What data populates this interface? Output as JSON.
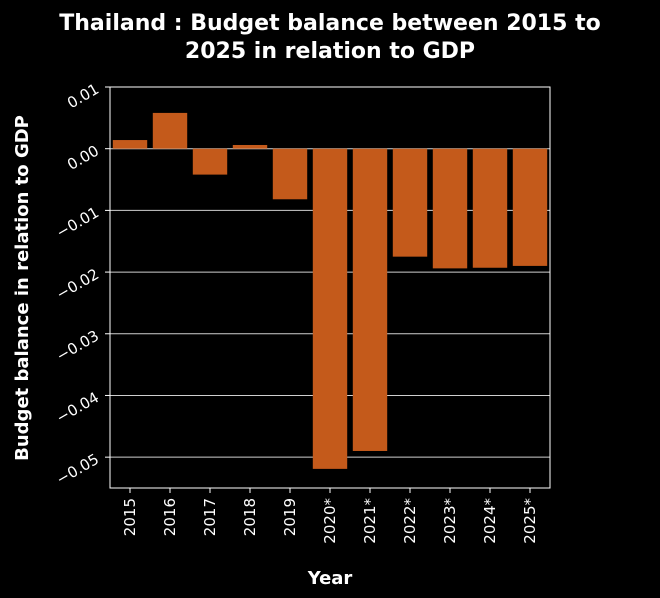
{
  "chart_data": {
    "type": "bar",
    "title_lines": [
      "Thailand : Budget balance between 2015 to",
      "2025 in relation to GDP"
    ],
    "xlabel": "Year",
    "ylabel": "Budget balance in relation to GDP",
    "categories": [
      "2015",
      "2016",
      "2017",
      "2018",
      "2019",
      "2020*",
      "2021*",
      "2022*",
      "2023*",
      "2024*",
      "2025*"
    ],
    "values": [
      0.0014,
      0.0058,
      -0.0042,
      0.0006,
      -0.0082,
      -0.0519,
      -0.049,
      -0.0175,
      -0.0194,
      -0.0193,
      -0.019
    ],
    "ylim": [
      -0.055,
      0.01
    ],
    "yticks": [
      0.01,
      0.0,
      -0.01,
      -0.02,
      -0.03,
      -0.04,
      -0.05
    ],
    "ytick_labels": [
      "0.01",
      "0.00",
      "−0.01",
      "−0.02",
      "−0.03",
      "−0.04",
      "−0.05"
    ],
    "grid": true,
    "colors": {
      "bar": "#c45a1b",
      "background": "#000000",
      "text": "#ffffff",
      "grid": "#cfcfcf"
    }
  }
}
